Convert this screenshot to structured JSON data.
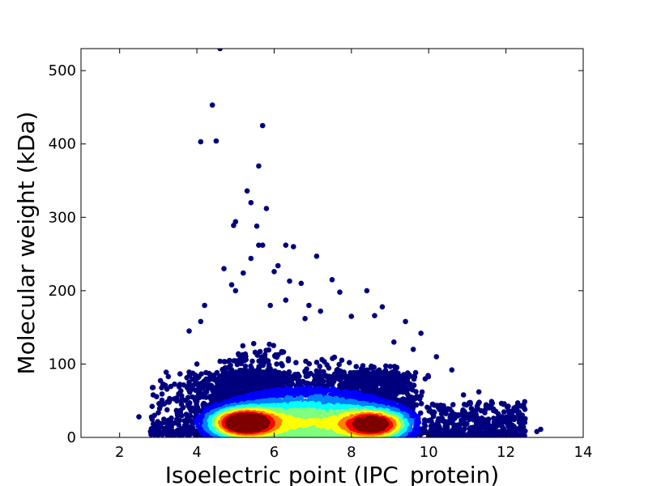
{
  "chart_data": {
    "type": "scatter",
    "title": "",
    "xlabel": "Isoelectric point (IPC_protein)",
    "ylabel": "Molecular weight (kDa)",
    "xlim": [
      1,
      14
    ],
    "ylim": [
      0,
      530
    ],
    "xticks": [
      2,
      4,
      6,
      8,
      10,
      12,
      14
    ],
    "yticks": [
      0,
      100,
      200,
      300,
      400,
      500
    ],
    "grid": false,
    "legend": "none",
    "colormap": "jet",
    "density_colors": [
      "#00007f",
      "#0000ff",
      "#007fff",
      "#00ffff",
      "#7fff7f",
      "#ffff00",
      "#ff7f00",
      "#ff0000",
      "#7f0000"
    ],
    "density_clusters": [
      {
        "x": 5.2,
        "y": 20,
        "level": 1.0
      },
      {
        "x": 8.6,
        "y": 18,
        "level": 0.85
      }
    ],
    "points": [
      [
        4.6,
        530
      ],
      [
        4.4,
        453
      ],
      [
        5.7,
        425
      ],
      [
        4.1,
        403
      ],
      [
        4.5,
        404
      ],
      [
        5.6,
        370
      ],
      [
        5.3,
        336
      ],
      [
        5.4,
        320
      ],
      [
        5.8,
        312
      ],
      [
        5.0,
        294
      ],
      [
        4.95,
        289
      ],
      [
        5.55,
        288
      ],
      [
        5.6,
        262
      ],
      [
        5.7,
        262
      ],
      [
        6.3,
        262
      ],
      [
        6.5,
        260
      ],
      [
        5.4,
        244
      ],
      [
        4.7,
        230
      ],
      [
        6.1,
        234
      ],
      [
        6.0,
        226
      ],
      [
        7.1,
        247
      ],
      [
        6.7,
        210
      ],
      [
        6.4,
        213
      ],
      [
        7.5,
        215
      ],
      [
        5.2,
        224
      ],
      [
        4.9,
        208
      ],
      [
        5.0,
        200
      ],
      [
        4.2,
        180
      ],
      [
        4.1,
        158
      ],
      [
        3.8,
        145
      ],
      [
        6.3,
        187
      ],
      [
        7.7,
        198
      ],
      [
        8.4,
        200
      ],
      [
        8.8,
        178
      ],
      [
        8.6,
        166
      ],
      [
        9.4,
        158
      ],
      [
        9.8,
        142
      ],
      [
        10.2,
        110
      ],
      [
        10.6,
        92
      ],
      [
        10.9,
        58
      ],
      [
        11.3,
        62
      ],
      [
        12.2,
        36
      ],
      [
        2.5,
        28
      ],
      [
        2.9,
        30
      ],
      [
        3.0,
        16
      ],
      [
        2.8,
        8
      ],
      [
        3.3,
        22
      ],
      [
        12.8,
        8
      ],
      [
        12.9,
        11
      ],
      [
        3.6,
        45
      ],
      [
        3.8,
        75
      ],
      [
        4.0,
        100
      ],
      [
        6.9,
        180
      ],
      [
        5.9,
        180
      ],
      [
        6.8,
        162
      ],
      [
        7.2,
        172
      ],
      [
        8.0,
        165
      ],
      [
        9.1,
        130
      ],
      [
        9.6,
        120
      ],
      [
        3.5,
        30
      ]
    ]
  }
}
